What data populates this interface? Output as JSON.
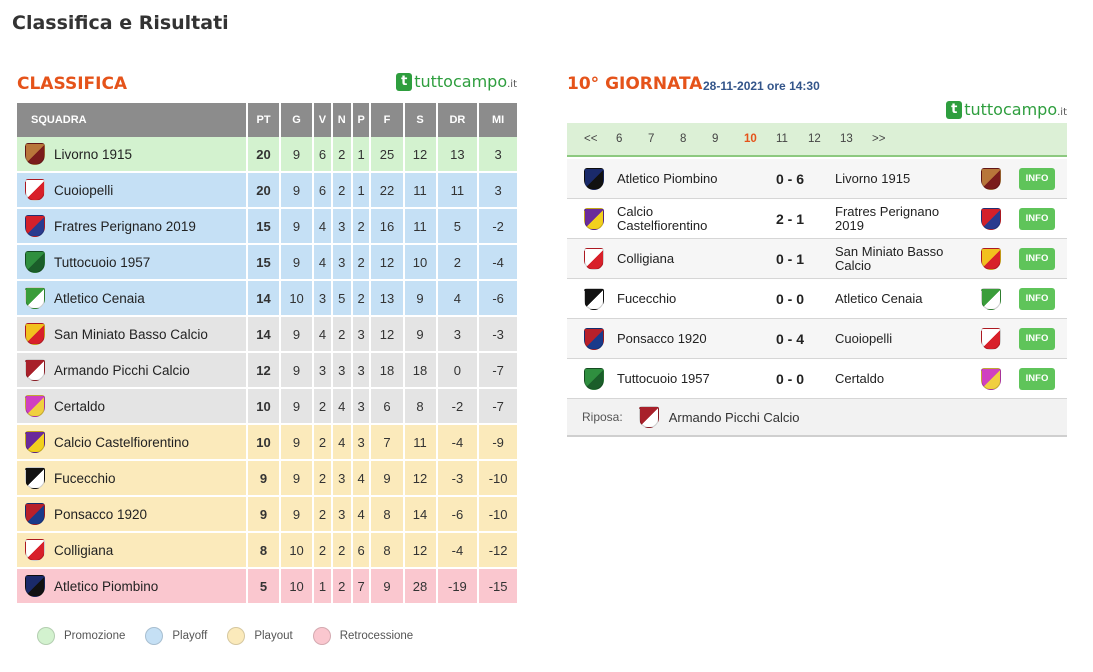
{
  "page": {
    "title": "Classifica e Risultati"
  },
  "brand": {
    "main": "tuttocampo",
    "suffix": ".it",
    "icon": "t"
  },
  "standings": {
    "title": "CLASSIFICA",
    "headers": [
      "SQUADRA",
      "PT",
      "G",
      "V",
      "N",
      "P",
      "F",
      "S",
      "DR",
      "MI"
    ],
    "rows": [
      {
        "zone": "promo",
        "team": "Livorno 1915",
        "crest": [
          "#b8763a",
          "#7a1c1c"
        ],
        "stats": [
          "20",
          "9",
          "6",
          "2",
          "1",
          "25",
          "12",
          "13",
          "3"
        ]
      },
      {
        "zone": "playoff",
        "team": "Cuoiopelli",
        "crest": [
          "#ffffff",
          "#d8202a"
        ],
        "stats": [
          "20",
          "9",
          "6",
          "2",
          "1",
          "22",
          "11",
          "11",
          "3"
        ]
      },
      {
        "zone": "playoff",
        "team": "Fratres Perignano 2019",
        "crest": [
          "#d4202a",
          "#2a3b8f"
        ],
        "stats": [
          "15",
          "9",
          "4",
          "3",
          "2",
          "16",
          "11",
          "5",
          "-2"
        ]
      },
      {
        "zone": "playoff",
        "team": "Tuttocuoio 1957",
        "crest": [
          "#2f8f3f",
          "#1b5e2a"
        ],
        "stats": [
          "15",
          "9",
          "4",
          "3",
          "2",
          "12",
          "10",
          "2",
          "-4"
        ]
      },
      {
        "zone": "playoff",
        "team": "Atletico Cenaia",
        "crest": [
          "#3a9d3a",
          "#ffffff"
        ],
        "stats": [
          "14",
          "10",
          "3",
          "5",
          "2",
          "13",
          "9",
          "4",
          "-6"
        ]
      },
      {
        "zone": "neutral",
        "team": "San Miniato Basso Calcio",
        "crest": [
          "#f2c01e",
          "#d8202a"
        ],
        "stats": [
          "14",
          "9",
          "4",
          "2",
          "3",
          "12",
          "9",
          "3",
          "-3"
        ]
      },
      {
        "zone": "neutral",
        "team": "Armando Picchi Calcio",
        "crest": [
          "#a8202a",
          "#ffffff"
        ],
        "stats": [
          "12",
          "9",
          "3",
          "3",
          "3",
          "18",
          "18",
          "0",
          "-7"
        ]
      },
      {
        "zone": "neutral",
        "team": "Certaldo",
        "crest": [
          "#d040c0",
          "#f0d040"
        ],
        "stats": [
          "10",
          "9",
          "2",
          "4",
          "3",
          "6",
          "8",
          "-2",
          "-7"
        ]
      },
      {
        "zone": "playout",
        "team": "Calcio Castelfiorentino",
        "crest": [
          "#6a2a9a",
          "#f2d01e"
        ],
        "stats": [
          "10",
          "9",
          "2",
          "4",
          "3",
          "7",
          "11",
          "-4",
          "-9"
        ]
      },
      {
        "zone": "playout",
        "team": "Fucecchio",
        "crest": [
          "#111111",
          "#ffffff"
        ],
        "stats": [
          "9",
          "9",
          "2",
          "3",
          "4",
          "9",
          "12",
          "-3",
          "-10"
        ]
      },
      {
        "zone": "playout",
        "team": "Ponsacco 1920",
        "crest": [
          "#b8202a",
          "#1a3a8a"
        ],
        "stats": [
          "9",
          "9",
          "2",
          "3",
          "4",
          "8",
          "14",
          "-6",
          "-10"
        ]
      },
      {
        "zone": "playout",
        "team": "Colligiana",
        "crest": [
          "#ffffff",
          "#d8202a"
        ],
        "stats": [
          "8",
          "10",
          "2",
          "2",
          "6",
          "8",
          "12",
          "-4",
          "-12"
        ]
      },
      {
        "zone": "retro",
        "team": "Atletico Piombino",
        "crest": [
          "#1a2a6a",
          "#111111"
        ],
        "stats": [
          "5",
          "10",
          "1",
          "2",
          "7",
          "9",
          "28",
          "-19",
          "-15"
        ]
      }
    ],
    "legend": [
      {
        "label": "Promozione",
        "color": "#d3f2cf"
      },
      {
        "label": "Playoff",
        "color": "#c5e0f5"
      },
      {
        "label": "Playout",
        "color": "#fbeabb"
      },
      {
        "label": "Retrocessione",
        "color": "#fac7cf"
      }
    ]
  },
  "round": {
    "title": "10° GIORNATA",
    "date": "28-11-2021 ore 14:30",
    "nav": [
      "<<",
      "6",
      "7",
      "8",
      "9",
      "10",
      "11",
      "12",
      "13",
      ">>"
    ],
    "current": "10",
    "info_label": "INFO",
    "matches": [
      {
        "home": "Atletico Piombino",
        "home_crest": [
          "#1a2a6a",
          "#111111"
        ],
        "home_goals": "0",
        "away_goals": "6",
        "away": "Livorno 1915",
        "away_crest": [
          "#b8763a",
          "#7a1c1c"
        ]
      },
      {
        "home": "Calcio Castelfiorentino",
        "home_crest": [
          "#6a2a9a",
          "#f2d01e"
        ],
        "home_goals": "2",
        "away_goals": "1",
        "away": "Fratres Perignano 2019",
        "away_crest": [
          "#d4202a",
          "#2a3b8f"
        ]
      },
      {
        "home": "Colligiana",
        "home_crest": [
          "#ffffff",
          "#d8202a"
        ],
        "home_goals": "0",
        "away_goals": "1",
        "away": "San Miniato Basso Calcio",
        "away_crest": [
          "#f2c01e",
          "#d8202a"
        ]
      },
      {
        "home": "Fucecchio",
        "home_crest": [
          "#111111",
          "#ffffff"
        ],
        "home_goals": "0",
        "away_goals": "0",
        "away": "Atletico Cenaia",
        "away_crest": [
          "#3a9d3a",
          "#ffffff"
        ]
      },
      {
        "home": "Ponsacco 1920",
        "home_crest": [
          "#b8202a",
          "#1a3a8a"
        ],
        "home_goals": "0",
        "away_goals": "4",
        "away": "Cuoiopelli",
        "away_crest": [
          "#ffffff",
          "#d8202a"
        ]
      },
      {
        "home": "Tuttocuoio 1957",
        "home_crest": [
          "#2f8f3f",
          "#1b5e2a"
        ],
        "home_goals": "0",
        "away_goals": "0",
        "away": "Certaldo",
        "away_crest": [
          "#d040c0",
          "#f0d040"
        ]
      }
    ],
    "rest_label": "Riposa:",
    "rest_team": "Armando Picchi Calcio",
    "rest_crest": [
      "#a8202a",
      "#ffffff"
    ]
  }
}
